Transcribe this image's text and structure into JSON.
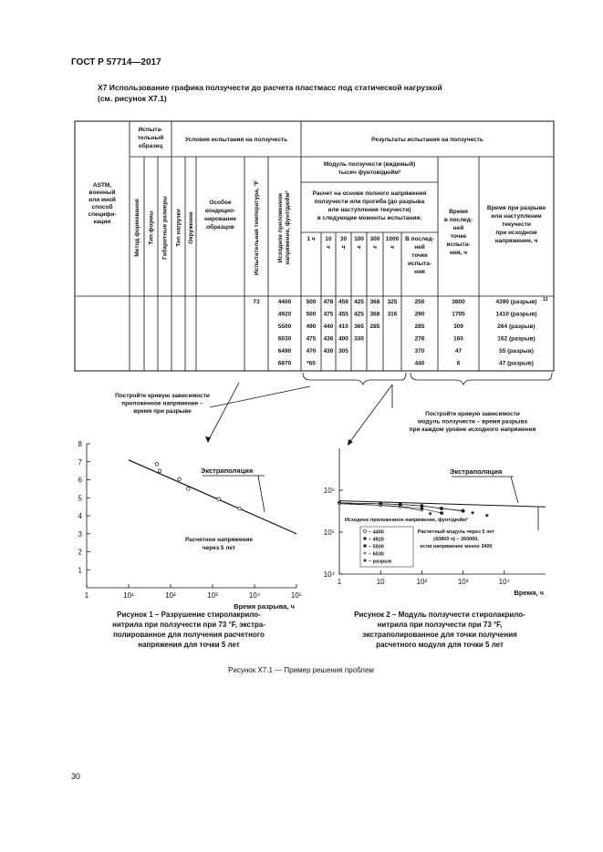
{
  "header": {
    "standard": "ГОСТ Р 57714—2017"
  },
  "section": {
    "title_lines": [
      "X7  Использование графика ползучести до расчета пластмасс под статической нагрузкой",
      "(см. рисунок X7.1)"
    ]
  },
  "table": {
    "headers": {
      "spec": [
        "ASTM,",
        "военный",
        "или иной",
        "способ",
        "специфи-",
        "кации"
      ],
      "specimen": [
        "Испыта-",
        "тельный",
        "образец"
      ],
      "specimen_cols": [
        "Метод формования",
        "Тип формы",
        "Габаритные размеры"
      ],
      "conditions": "Условия испытания на ползучесть",
      "condition_cols": [
        "Тип нагрузки",
        "Окружение"
      ],
      "conditioning": [
        "Особое",
        "кондицио-",
        "нирование",
        "образцов"
      ],
      "temperature": "Испытательная температура, °F",
      "stress": [
        "Исходное приложенное",
        "напряжение, фунт/дюйм²"
      ],
      "results": "Результаты испытания на ползучесть",
      "modulus": [
        "Модуль ползучести (видимый)",
        "тысяч фунтов/дюйм²"
      ],
      "basis": [
        "Расчет на основе полного напряжения",
        "ползучести или прогиба (до разрыва",
        "или наступления текучести)",
        "в следующие моменты испытания:"
      ],
      "times": [
        [
          "1 ч"
        ],
        [
          "10",
          "ч"
        ],
        [
          "30",
          "ч"
        ],
        [
          "100",
          "ч"
        ],
        [
          "300",
          "ч"
        ],
        [
          "1000",
          "ч"
        ],
        [
          "В послед-",
          "ней",
          "точке",
          "испыта-",
          "ния"
        ]
      ],
      "time_last": [
        "Время",
        "в послед-",
        "ней",
        "точке",
        "испыта-",
        "ния, ч"
      ],
      "time_rupture": [
        "Время при разрыве",
        "или наступлении",
        "текучести",
        "при исходном",
        "напряжении, ч"
      ]
    },
    "rows": [
      {
        "temperature": 73,
        "stress": 4400,
        "modulus": [
          500,
          478,
          459,
          425,
          368,
          325
        ],
        "last": 250,
        "time_last": 3800,
        "rupture": "4390 (разрыв)",
        "note": "13"
      },
      {
        "stress": 4920,
        "modulus": [
          500,
          475,
          455,
          425,
          368,
          316
        ],
        "last": 290,
        "time_last": 1705,
        "rupture": "1410 (разрыв)"
      },
      {
        "stress": 5500,
        "modulus": [
          490,
          440,
          410,
          365,
          285
        ],
        "last": 285,
        "time_last": 309,
        "rupture": "264 (разрыв)"
      },
      {
        "stress": 6030,
        "modulus": [
          475,
          436,
          400,
          330
        ],
        "last": 276,
        "time_last": 160,
        "rupture": "162 (разрыв)"
      },
      {
        "stress": 6490,
        "modulus": [
          470,
          430,
          305
        ],
        "last": 370,
        "time_last": 47,
        "rupture": "55 (разрыв)"
      },
      {
        "stress": 6870,
        "modulus": [
          "*60"
        ],
        "last": 440,
        "time_last": 6,
        "rupture": "47 (разрыв)"
      }
    ]
  },
  "callouts": [
    {
      "lines": [
        "Постройте кривую зависимости",
        "приложенное напряжение –",
        "время при разрыве"
      ]
    },
    {
      "lines": [
        "Постройте кривую зависимости",
        "модуль ползучести – время разрыва",
        "при каждом уровне исходного напряжения"
      ]
    }
  ],
  "figure1": {
    "xlim": [
      1,
      100000
    ],
    "log_x": true,
    "xticks": [
      1,
      {
        "value": 10,
        "label": "10¹"
      },
      {
        "value": 100,
        "label": "10²"
      },
      {
        "value": 1000,
        "label": "10³"
      },
      {
        "value": 10000,
        "label": "10⁴"
      },
      {
        "value": 100000,
        "label": "10⁵"
      }
    ],
    "ylim": [
      0,
      8
    ],
    "yticks": [
      1,
      2,
      3,
      4,
      5,
      6,
      7,
      8
    ],
    "xlabel": "Время разрыва, ч",
    "points": {
      "x": [
        4390,
        1410,
        264,
        162,
        55,
        47
      ],
      "y": [
        4.4,
        4.92,
        5.5,
        6.03,
        6.49,
        6.87
      ]
    },
    "trend": {
      "x": [
        10,
        100000
      ],
      "y": [
        7.1,
        3.0
      ]
    },
    "extrapolation_label": "Экстраполяция",
    "design_label": [
      "Расчетное напряжение",
      "через 5 лет"
    ],
    "caption": [
      "Рисунок 1 – Разрушение стиролакрило-",
      "нитрила при ползучести при 73 °F, экстра-",
      "полированное для получения расчетного",
      "напряжения для точки 5 лет"
    ]
  },
  "figure2": {
    "xlim": [
      1,
      100000
    ],
    "log_x": true,
    "xticks": [
      1,
      {
        "value": 10,
        "label": "10"
      },
      {
        "value": 100,
        "label": "10²"
      },
      {
        "value": 1000,
        "label": "10³"
      },
      {
        "value": 10000,
        "label": "10⁴"
      }
    ],
    "ylim": [
      10000,
      10000000
    ],
    "log_y": true,
    "yticks": [
      {
        "value": 10000,
        "label": "10⁴"
      },
      {
        "value": 100000,
        "label": "10⁵"
      },
      {
        "value": 1000000,
        "label": "10⁶"
      }
    ],
    "xlabel": "Время, ч",
    "x": [
      1,
      10,
      30,
      100,
      300,
      1000
    ],
    "series": [
      {
        "name": "– 4400",
        "values": [
          500000,
          478000,
          459000,
          425000,
          368000,
          325000
        ]
      },
      {
        "name": "– 4920",
        "values": [
          500000,
          475000,
          455000,
          425000,
          368000,
          316000
        ]
      },
      {
        "name": "– 5500",
        "values": [
          490000,
          440000,
          410000,
          365000,
          285000,
          null
        ]
      },
      {
        "name": "– 6030",
        "values": [
          475000,
          436000,
          400000,
          330000,
          null,
          null
        ]
      }
    ],
    "rupture": {
      "name": "– разрыв",
      "x": [
        3800,
        1705,
        309,
        160
      ],
      "values": [
        250000,
        290000,
        285000,
        276000
      ]
    },
    "trend": {
      "x": [
        1,
        100000
      ],
      "y": [
        560000,
        400000
      ]
    },
    "extrapolation_label": "Экстраполяция",
    "stress_label": "Исходное приложенное напряжение, фунт/дюйм²",
    "note": [
      "Расчетный модуль через 5 лет",
      "(43800 ч) – 260000,",
      "если напряжение менее 3400"
    ],
    "caption": [
      "Рисунок 2 – Модуль ползучести стиролакрило-",
      "нитрила при ползучести при 73 °F,",
      "экстраполированное для точки получения",
      "расчетного модуля для точки 5 лет"
    ]
  },
  "figure_caption": "Рисунок X7.1 — Пример решения проблем",
  "page_number": "30"
}
